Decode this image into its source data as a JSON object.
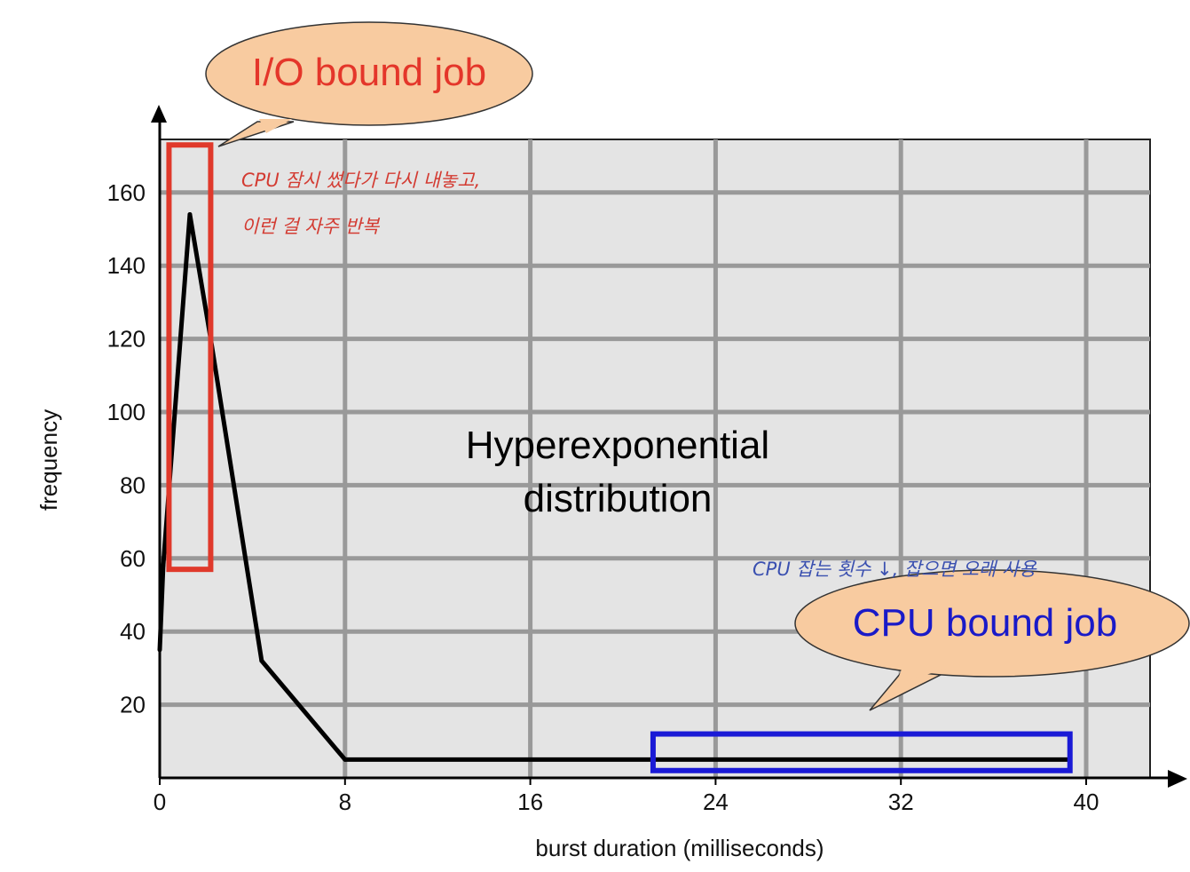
{
  "chart_data": {
    "type": "line",
    "title": "",
    "xlabel": "burst duration (milliseconds)",
    "ylabel": "frequency",
    "xlim": [
      0,
      42
    ],
    "ylim": [
      0,
      175
    ],
    "xticks": [
      0,
      8,
      16,
      24,
      32,
      40
    ],
    "yticks": [
      20,
      40,
      60,
      80,
      100,
      120,
      140,
      160
    ],
    "grid": true,
    "series": [
      {
        "x": [
          0,
          0.15,
          1.3,
          2.2,
          4.4,
          8,
          39.3
        ],
        "y": [
          35,
          58,
          154,
          120,
          32,
          5,
          5
        ]
      }
    ],
    "annotations": {
      "center_text": [
        "Hyperexponential",
        "distribution"
      ],
      "io_bubble": "I/O bound job",
      "cpu_bubble": "CPU bound job",
      "io_note_line1": "CPU 잠시 썼다가 다시 내놓고,",
      "io_note_line2": "이런 걸 자주 반복",
      "cpu_note": "CPU 잡는 횟수 ↓, 잡으면 오래 사용",
      "io_box": {
        "x": [
          0.4,
          2.2
        ],
        "y": [
          57,
          173
        ]
      },
      "cpu_box": {
        "x": [
          21.3,
          39.3
        ],
        "y": [
          2,
          12
        ]
      }
    }
  },
  "colors": {
    "plot_bg": "#e4e4e4",
    "grid": "#999999",
    "line": "#000000",
    "io_highlight": "#e0392b",
    "cpu_highlight": "#1a1ad6",
    "bubble_fill": "#f8cba0",
    "bubble_stroke": "#333333",
    "io_bubble_text": "#e4362a",
    "cpu_bubble_text": "#1a1ac8",
    "io_note": "#d33b32",
    "cpu_note": "#3a50b0"
  }
}
